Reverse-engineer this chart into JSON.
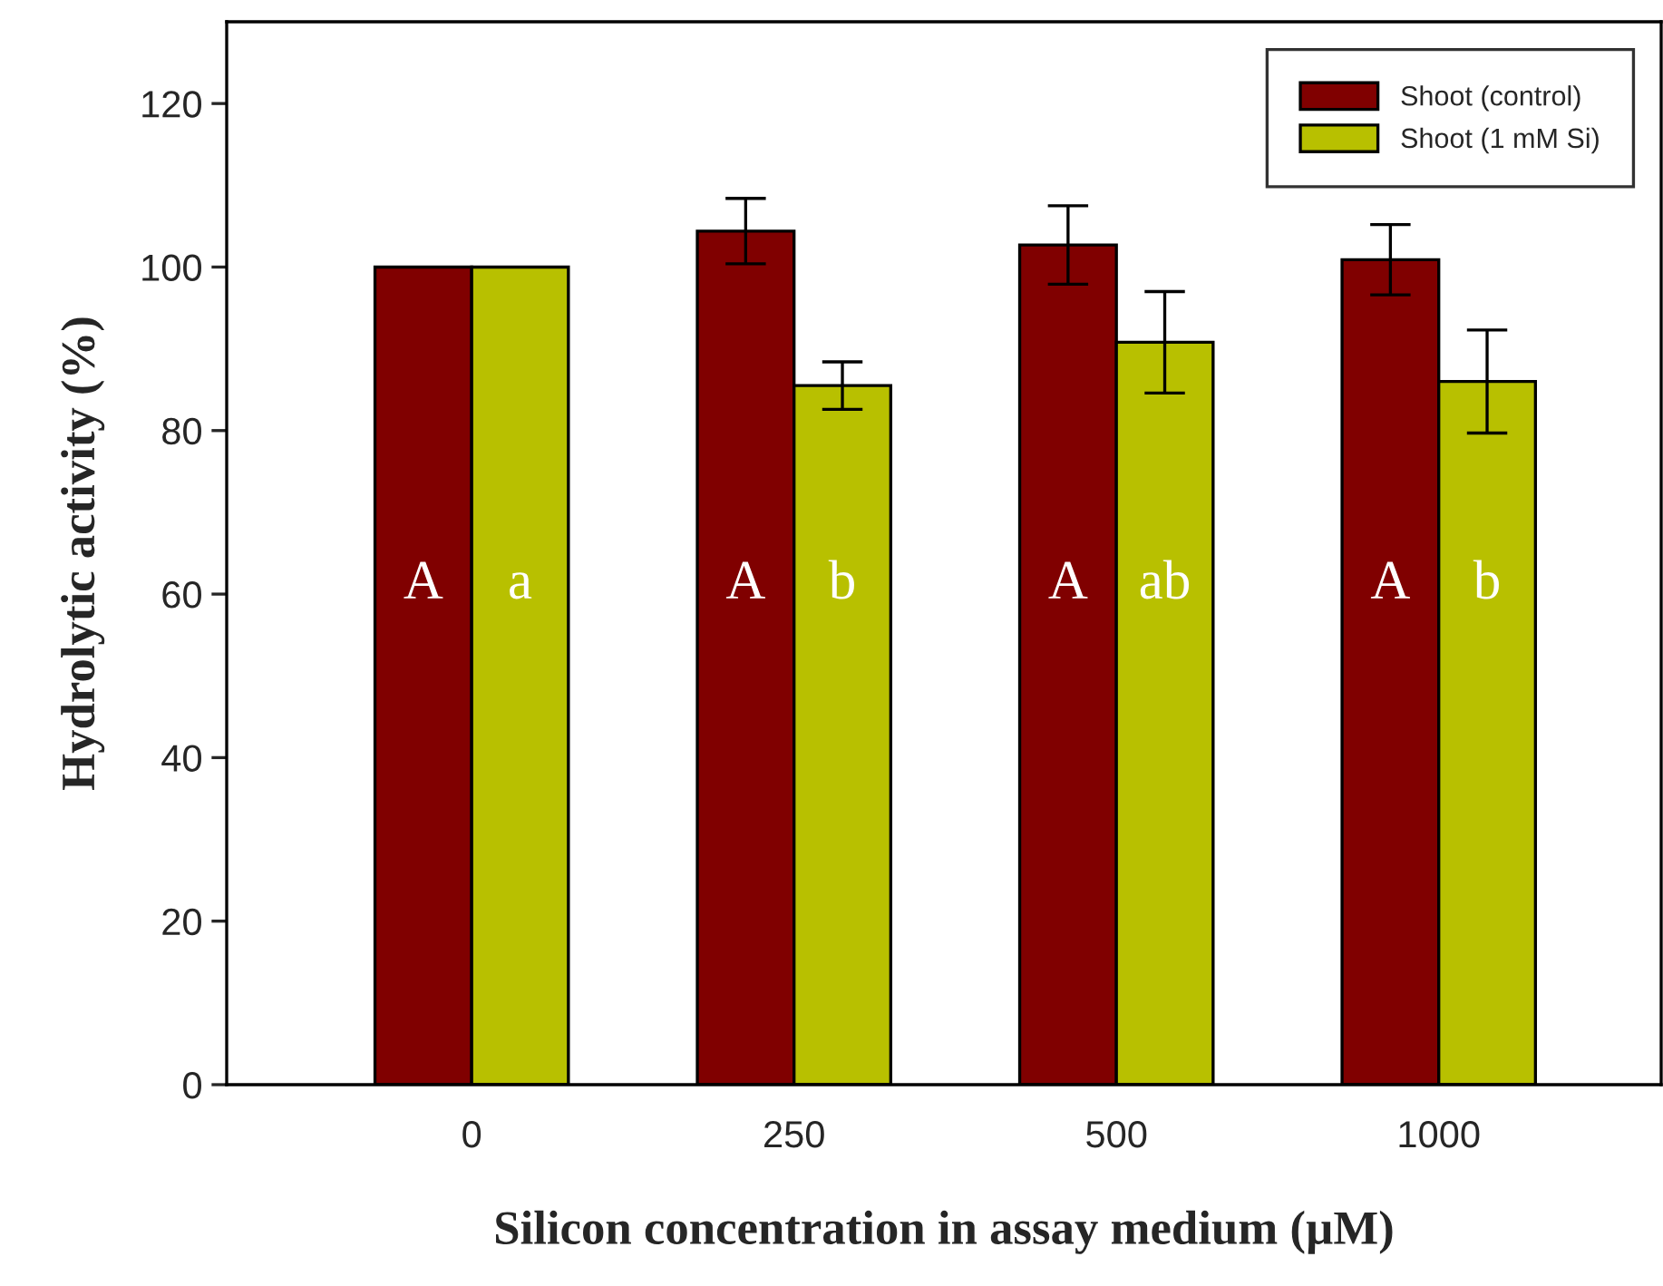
{
  "chart_data": {
    "type": "bar",
    "xlabel": "Silicon concentration in assay medium (µM)",
    "ylabel": "Hydrolytic activity (%)",
    "categories": [
      "0",
      "250",
      "500",
      "1000"
    ],
    "series": [
      {
        "name": "Shoot (control)",
        "color": "#800000",
        "values": [
          100,
          104.4,
          102.7,
          100.9
        ],
        "errors": [
          null,
          4.0,
          4.8,
          4.3
        ],
        "value_labels": [
          "A",
          "A",
          "A",
          "A"
        ]
      },
      {
        "name": "Shoot (1 mM Si)",
        "color": "#b8c000",
        "values": [
          100,
          85.5,
          90.8,
          86.0
        ],
        "errors": [
          null,
          2.9,
          6.2,
          6.3
        ],
        "value_labels": [
          "a",
          "b",
          "ab",
          "b"
        ]
      }
    ],
    "ylim": [
      0,
      130
    ],
    "yticks": [
      0,
      20,
      40,
      60,
      80,
      100,
      120
    ],
    "legend": "top right",
    "grid": false
  }
}
